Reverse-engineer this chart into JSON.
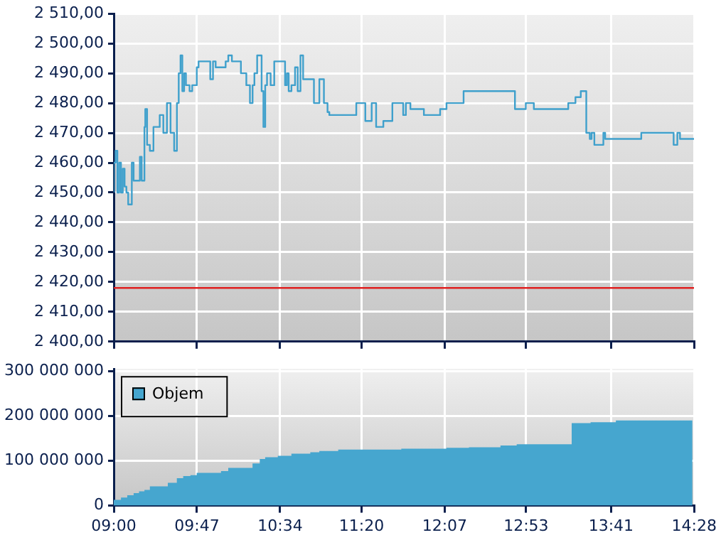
{
  "chart_data": [
    {
      "type": "step",
      "color": "#3fa0cc",
      "x": [
        9.0,
        9.017,
        9.034,
        9.051,
        9.068,
        9.085,
        9.102,
        9.119,
        9.136,
        9.17,
        9.187,
        9.204,
        9.246,
        9.263,
        9.289,
        9.297,
        9.314,
        9.34,
        9.374,
        9.433,
        9.467,
        9.501,
        9.535,
        9.569,
        9.595,
        9.612,
        9.629,
        9.646,
        9.663,
        9.68,
        9.714,
        9.739,
        9.782,
        9.799,
        9.909,
        9.935,
        9.96,
        10.054,
        10.079,
        10.113,
        10.198,
        10.249,
        10.283,
        10.308,
        10.325,
        10.351,
        10.393,
        10.41,
        10.427,
        10.444,
        10.478,
        10.512,
        10.529,
        10.614,
        10.631,
        10.648,
        10.674,
        10.708,
        10.733,
        10.759,
        10.784,
        10.886,
        10.937,
        10.98,
        11.014,
        11.031,
        11.115,
        11.2,
        11.285,
        11.37,
        11.43,
        11.472,
        11.54,
        11.625,
        11.727,
        11.752,
        11.795,
        11.922,
        12.075,
        12.135,
        12.296,
        12.78,
        12.882,
        12.958,
        13.282,
        13.35,
        13.4,
        13.452,
        13.485,
        13.502,
        13.528,
        13.613,
        13.63,
        13.97,
        14.275,
        14.31,
        14.335,
        14.403,
        14.4667
      ],
      "values": [
        2450,
        2460,
        2464,
        2450,
        2460,
        2450,
        2458,
        2452,
        2450,
        2446,
        2460,
        2454,
        2454,
        2462,
        2454,
        2472,
        2478,
        2466,
        2464,
        2472,
        2476,
        2470,
        2480,
        2470,
        2464,
        2480,
        2490,
        2496,
        2484,
        2490,
        2486,
        2484,
        2486,
        2492,
        2494,
        2488,
        2494,
        2492,
        2494,
        2496,
        2494,
        2490,
        2486,
        2480,
        2486,
        2490,
        2496,
        2484,
        2472,
        2486,
        2490,
        2486,
        2494,
        2494,
        2486,
        2490,
        2484,
        2486,
        2492,
        2484,
        2496,
        2488,
        2480,
        2488,
        2480,
        2477,
        2476,
        2476,
        2476,
        2480,
        2474,
        2480,
        2472,
        2474,
        2480,
        2476,
        2480,
        2478,
        2476,
        2478,
        2480,
        2484,
        2478,
        2480,
        2478,
        2480,
        2482,
        2484,
        2470,
        2468,
        2470,
        2466,
        2470,
        2468,
        2470,
        2466,
        2470,
        2468,
        2468
      ],
      "xlim": [
        9,
        14.4667
      ],
      "xticks": [
        {
          "value": 9,
          "label": null
        },
        {
          "value": 9.7833,
          "label": null
        },
        {
          "value": 10.5667,
          "label": null
        },
        {
          "value": 11.3333,
          "label": null
        },
        {
          "value": 12.1167,
          "label": null
        },
        {
          "value": 12.8833,
          "label": null
        },
        {
          "value": 13.6833,
          "label": null
        },
        {
          "value": 14.4667,
          "label": null
        }
      ],
      "ylim": [
        2400,
        2510
      ],
      "yticks": [
        {
          "value": 2400,
          "label": "2 400,00"
        },
        {
          "value": 2410,
          "label": "2 410,00"
        },
        {
          "value": 2420,
          "label": "2 420,00"
        },
        {
          "value": 2430,
          "label": "2 430,00"
        },
        {
          "value": 2440,
          "label": "2 440,00"
        },
        {
          "value": 2450,
          "label": "2 450,00"
        },
        {
          "value": 2460,
          "label": "2 460,00"
        },
        {
          "value": 2470,
          "label": "2 470,00"
        },
        {
          "value": 2480,
          "label": "2 480,00"
        },
        {
          "value": 2490,
          "label": "2 490,00"
        },
        {
          "value": 2500,
          "label": "2 500,00"
        },
        {
          "value": 2510,
          "label": "2 510,00"
        }
      ],
      "ref_lines": [
        {
          "axis": "y",
          "value": 2418,
          "color": "#e02020"
        }
      ],
      "grid": true,
      "legend": false,
      "tick_labels": "y"
    },
    {
      "type": "area",
      "series": [
        {
          "name": "Objem",
          "color": "#46a6cf",
          "x": [
            9.0,
            9.068,
            9.127,
            9.187,
            9.238,
            9.289,
            9.34,
            9.509,
            9.594,
            9.654,
            9.722,
            9.781,
            10.01,
            10.078,
            10.307,
            10.375,
            10.426,
            10.545,
            10.673,
            10.851,
            10.936,
            11.114,
            11.708,
            12.133,
            12.345,
            12.642,
            12.795,
            13.313,
            13.491,
            13.729,
            14.281,
            14.45
          ],
          "values": [
            8000000,
            13000000,
            18000000,
            23000000,
            28000000,
            32000000,
            35000000,
            43000000,
            51000000,
            61000000,
            66000000,
            68000000,
            73000000,
            77000000,
            84000000,
            94000000,
            104000000,
            108000000,
            111000000,
            116000000,
            119000000,
            122000000,
            125000000,
            127000000,
            129000000,
            130000000,
            134000000,
            137000000,
            184000000,
            186000000,
            190000000,
            190000000
          ]
        }
      ],
      "xlim": [
        9,
        14.4667
      ],
      "xticks": [
        {
          "value": 9,
          "label": "09:00"
        },
        {
          "value": 9.7833,
          "label": "09:47"
        },
        {
          "value": 10.5667,
          "label": "10:34"
        },
        {
          "value": 11.3333,
          "label": "11:20"
        },
        {
          "value": 12.1167,
          "label": "12:07"
        },
        {
          "value": 12.8833,
          "label": "12:53"
        },
        {
          "value": 13.6833,
          "label": "13:41"
        },
        {
          "value": 14.4667,
          "label": "14:28"
        }
      ],
      "ylim": [
        0,
        305000000
      ],
      "yticks": [
        {
          "value": 0,
          "label": "0"
        },
        {
          "value": 100000000,
          "label": "100 000 000"
        },
        {
          "value": 200000000,
          "label": "200 000 000"
        },
        {
          "value": 300000000,
          "label": "300 000 000"
        }
      ],
      "grid": true,
      "legend": "top left"
    }
  ]
}
